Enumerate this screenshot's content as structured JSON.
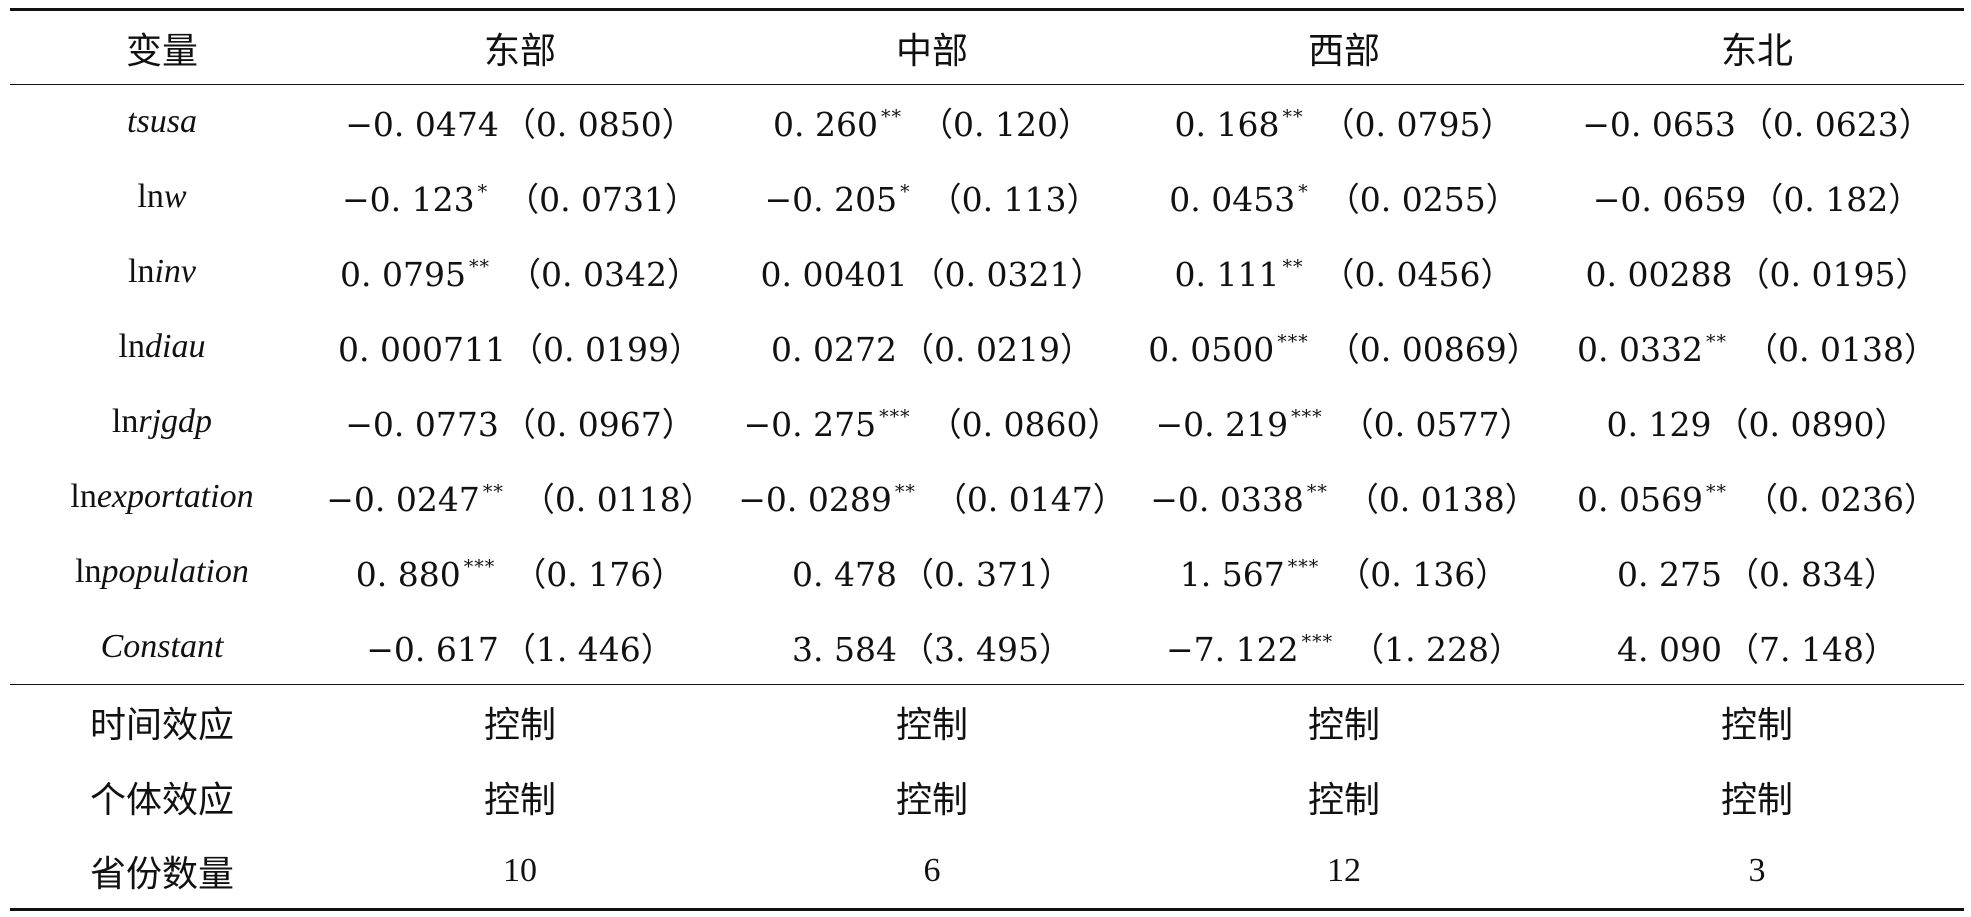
{
  "table": {
    "headers": [
      "变量",
      "东部",
      "中部",
      "西部",
      "东北"
    ],
    "rows": [
      {
        "var": {
          "prefix": "",
          "italic": "tsusa"
        },
        "cells": [
          {
            "coef": "−0. 0474",
            "stars": "",
            "se": "（0. 0850）"
          },
          {
            "coef": "0. 260",
            "stars": "**",
            "se": "（0. 120）"
          },
          {
            "coef": "0. 168",
            "stars": "**",
            "se": "（0. 0795）"
          },
          {
            "coef": "−0. 0653",
            "stars": "",
            "se": "（0. 0623）"
          }
        ]
      },
      {
        "var": {
          "prefix": "ln",
          "italic": "w"
        },
        "cells": [
          {
            "coef": "−0. 123",
            "stars": "*",
            "se": "（0. 0731）"
          },
          {
            "coef": "−0. 205",
            "stars": "*",
            "se": "（0. 113）"
          },
          {
            "coef": "0. 0453",
            "stars": "*",
            "se": "（0. 0255）"
          },
          {
            "coef": "−0. 0659",
            "stars": "",
            "se": "（0. 182）"
          }
        ]
      },
      {
        "var": {
          "prefix": "ln",
          "italic": "inv"
        },
        "cells": [
          {
            "coef": "0. 0795",
            "stars": "**",
            "se": "（0. 0342）"
          },
          {
            "coef": "0. 00401",
            "stars": "",
            "se": "（0. 0321）"
          },
          {
            "coef": "0. 111",
            "stars": "**",
            "se": "（0. 0456）"
          },
          {
            "coef": "0. 00288",
            "stars": "",
            "se": "（0. 0195）"
          }
        ]
      },
      {
        "var": {
          "prefix": "ln",
          "italic": "diau"
        },
        "cells": [
          {
            "coef": "0. 000711",
            "stars": "",
            "se": "（0. 0199）"
          },
          {
            "coef": "0. 0272",
            "stars": "",
            "se": "（0. 0219）"
          },
          {
            "coef": "0. 0500",
            "stars": "***",
            "se": "（0. 00869）"
          },
          {
            "coef": "0. 0332",
            "stars": "**",
            "se": "（0. 0138）"
          }
        ]
      },
      {
        "var": {
          "prefix": "ln",
          "italic": "rjgdp"
        },
        "cells": [
          {
            "coef": "−0. 0773",
            "stars": "",
            "se": "（0. 0967）"
          },
          {
            "coef": "−0. 275",
            "stars": "***",
            "se": "（0. 0860）"
          },
          {
            "coef": "−0. 219",
            "stars": "***",
            "se": "（0. 0577）"
          },
          {
            "coef": "0. 129",
            "stars": "",
            "se": "（0. 0890）"
          }
        ]
      },
      {
        "var": {
          "prefix": "ln",
          "italic": "exportation"
        },
        "cells": [
          {
            "coef": "−0. 0247",
            "stars": "**",
            "se": "（0. 0118）"
          },
          {
            "coef": "−0. 0289",
            "stars": "**",
            "se": "（0. 0147）"
          },
          {
            "coef": "−0. 0338",
            "stars": "**",
            "se": "（0. 0138）"
          },
          {
            "coef": "0. 0569",
            "stars": "**",
            "se": "（0. 0236）"
          }
        ]
      },
      {
        "var": {
          "prefix": "ln",
          "italic": "population"
        },
        "cells": [
          {
            "coef": "0. 880",
            "stars": "***",
            "se": "（0. 176）"
          },
          {
            "coef": "0. 478",
            "stars": "",
            "se": "（0. 371）"
          },
          {
            "coef": "1. 567",
            "stars": "***",
            "se": "（0. 136）"
          },
          {
            "coef": "0. 275",
            "stars": "",
            "se": "（0. 834）"
          }
        ]
      },
      {
        "var": {
          "prefix": "",
          "italic": "Constant"
        },
        "cells": [
          {
            "coef": "−0. 617",
            "stars": "",
            "se": "（1. 446）"
          },
          {
            "coef": "3. 584",
            "stars": "",
            "se": "（3. 495）"
          },
          {
            "coef": "−7. 122",
            "stars": "***",
            "se": "（1. 228）"
          },
          {
            "coef": "4. 090",
            "stars": "",
            "se": "（7. 148）"
          }
        ]
      }
    ],
    "footer_rows": [
      {
        "label": "时间效应",
        "values": [
          "控制",
          "控制",
          "控制",
          "控制"
        ]
      },
      {
        "label": "个体效应",
        "values": [
          "控制",
          "控制",
          "控制",
          "控制"
        ]
      },
      {
        "label": "省份数量",
        "values": [
          "10",
          "6",
          "12",
          "3"
        ]
      }
    ]
  }
}
